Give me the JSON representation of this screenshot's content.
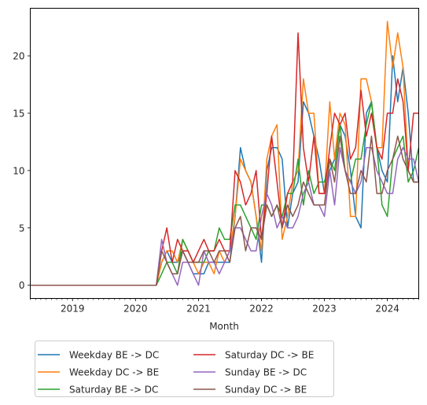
{
  "chart_data": {
    "type": "line",
    "title": "",
    "xlabel": "Month",
    "ylabel": "",
    "grid": false,
    "legend_position": "below",
    "xlim": [
      "2018-05-01",
      "2024-07-01"
    ],
    "ylim": [
      -1.15,
      24.15
    ],
    "x_ticks": [
      {
        "date": "2019-01-01",
        "label": "2019"
      },
      {
        "date": "2020-01-01",
        "label": "2020"
      },
      {
        "date": "2021-01-01",
        "label": "2021"
      },
      {
        "date": "2022-01-01",
        "label": "2022"
      },
      {
        "date": "2023-01-01",
        "label": "2023"
      },
      {
        "date": "2024-01-01",
        "label": "2024"
      }
    ],
    "y_ticks": [
      0,
      5,
      10,
      15,
      20
    ],
    "x": [
      "2018-05-01",
      "2018-06-01",
      "2018-07-01",
      "2018-08-01",
      "2018-09-01",
      "2018-10-01",
      "2018-11-01",
      "2018-12-01",
      "2019-01-01",
      "2019-02-01",
      "2019-03-01",
      "2019-04-01",
      "2019-05-01",
      "2019-06-01",
      "2019-07-01",
      "2019-08-01",
      "2019-09-01",
      "2019-10-01",
      "2019-11-01",
      "2019-12-01",
      "2020-01-01",
      "2020-02-01",
      "2020-03-01",
      "2020-04-01",
      "2020-05-01",
      "2020-06-01",
      "2020-07-01",
      "2020-08-01",
      "2020-09-01",
      "2020-10-01",
      "2020-11-01",
      "2020-12-01",
      "2021-01-01",
      "2021-02-01",
      "2021-03-01",
      "2021-04-01",
      "2021-05-01",
      "2021-06-01",
      "2021-07-01",
      "2021-08-01",
      "2021-09-01",
      "2021-10-01",
      "2021-11-01",
      "2021-12-01",
      "2022-01-01",
      "2022-02-01",
      "2022-03-01",
      "2022-04-01",
      "2022-05-01",
      "2022-06-01",
      "2022-07-01",
      "2022-08-01",
      "2022-09-01",
      "2022-10-01",
      "2022-11-01",
      "2022-12-01",
      "2023-01-01",
      "2023-02-01",
      "2023-03-01",
      "2023-04-01",
      "2023-05-01",
      "2023-06-01",
      "2023-07-01",
      "2023-08-01",
      "2023-09-01",
      "2023-10-01",
      "2023-11-01",
      "2023-12-01",
      "2024-01-01",
      "2024-02-01",
      "2024-03-01",
      "2024-04-01",
      "2024-05-01",
      "2024-06-01",
      "2024-07-01"
    ],
    "series": [
      {
        "name": "Weekday BE -> DC",
        "color": "#1f77b4",
        "values": [
          0,
          0,
          0,
          0,
          0,
          0,
          0,
          0,
          0,
          0,
          0,
          0,
          0,
          0,
          0,
          0,
          0,
          0,
          0,
          0,
          0,
          0,
          0,
          0,
          0,
          2,
          3,
          2,
          2,
          3,
          2,
          1,
          1,
          1,
          2,
          2,
          2,
          2,
          2,
          6,
          12,
          10,
          9,
          6,
          2,
          10,
          12,
          12,
          11,
          5,
          8,
          9,
          16,
          15,
          13,
          11,
          8,
          10,
          11,
          14,
          13,
          10,
          6,
          5,
          15,
          16,
          12,
          10,
          9,
          20,
          16,
          19,
          15,
          9,
          9
        ]
      },
      {
        "name": "Weekday DC -> BE",
        "color": "#ff7f0e",
        "values": [
          0,
          0,
          0,
          0,
          0,
          0,
          0,
          0,
          0,
          0,
          0,
          0,
          0,
          0,
          0,
          0,
          0,
          0,
          0,
          0,
          0,
          0,
          0,
          0,
          0,
          2,
          3,
          3,
          2,
          4,
          3,
          2,
          1,
          2,
          2,
          1,
          3,
          2,
          3,
          6,
          11,
          10,
          9,
          6,
          3,
          11,
          13,
          14,
          4,
          6,
          9,
          10,
          18,
          15,
          15,
          8,
          8,
          16,
          11,
          15,
          14,
          6,
          6,
          18,
          18,
          16,
          12,
          12,
          23,
          19,
          22,
          19,
          10,
          9,
          9
        ]
      },
      {
        "name": "Saturday BE -> DC",
        "color": "#2ca02c",
        "values": [
          0,
          0,
          0,
          0,
          0,
          0,
          0,
          0,
          0,
          0,
          0,
          0,
          0,
          0,
          0,
          0,
          0,
          0,
          0,
          0,
          0,
          0,
          0,
          0,
          0,
          1,
          2,
          2,
          1,
          4,
          3,
          2,
          2,
          2,
          3,
          3,
          5,
          4,
          4,
          7,
          7,
          6,
          5,
          4,
          7,
          7,
          6,
          7,
          6,
          8,
          8,
          11,
          7,
          10,
          8,
          9,
          9,
          11,
          10,
          14,
          10,
          9,
          11,
          11,
          14,
          16,
          12,
          7,
          6,
          11,
          12,
          13,
          9,
          10,
          12
        ]
      },
      {
        "name": "Saturday DC -> BE",
        "color": "#d62728",
        "values": [
          0,
          0,
          0,
          0,
          0,
          0,
          0,
          0,
          0,
          0,
          0,
          0,
          0,
          0,
          0,
          0,
          0,
          0,
          0,
          0,
          0,
          0,
          0,
          0,
          0,
          3,
          5,
          2,
          4,
          3,
          3,
          2,
          3,
          4,
          3,
          3,
          4,
          3,
          3,
          10,
          9,
          7,
          8,
          10,
          4,
          8,
          13,
          9,
          5,
          8,
          9,
          22,
          12,
          9,
          13,
          8,
          8,
          12,
          15,
          14,
          15,
          11,
          12,
          17,
          13,
          15,
          12,
          11,
          15,
          15,
          18,
          16,
          10,
          15,
          15
        ]
      },
      {
        "name": "Sunday BE -> DC",
        "color": "#9467bd",
        "values": [
          0,
          0,
          0,
          0,
          0,
          0,
          0,
          0,
          0,
          0,
          0,
          0,
          0,
          0,
          0,
          0,
          0,
          0,
          0,
          0,
          0,
          0,
          0,
          0,
          0,
          4,
          2,
          1,
          0,
          2,
          2,
          1,
          0,
          3,
          2,
          2,
          1,
          2,
          3,
          5,
          5,
          4,
          3,
          3,
          6,
          8,
          7,
          5,
          6,
          5,
          5,
          6,
          8,
          9,
          7,
          7,
          6,
          10,
          7,
          12,
          10,
          9,
          8,
          9,
          12,
          12,
          10,
          9,
          8,
          8,
          11,
          12,
          11,
          11,
          9
        ]
      },
      {
        "name": "Sunday DC -> BE",
        "color": "#8c564b",
        "values": [
          0,
          0,
          0,
          0,
          0,
          0,
          0,
          0,
          0,
          0,
          0,
          0,
          0,
          0,
          0,
          0,
          0,
          0,
          0,
          0,
          0,
          0,
          0,
          0,
          0,
          3,
          2,
          1,
          1,
          3,
          2,
          2,
          2,
          3,
          3,
          2,
          3,
          3,
          2,
          5,
          6,
          3,
          5,
          5,
          4,
          7,
          6,
          7,
          5,
          7,
          6,
          7,
          9,
          8,
          7,
          7,
          7,
          11,
          9,
          13,
          10,
          8,
          8,
          10,
          9,
          13,
          8,
          8,
          10,
          11,
          13,
          11,
          10,
          9,
          9
        ]
      }
    ]
  }
}
